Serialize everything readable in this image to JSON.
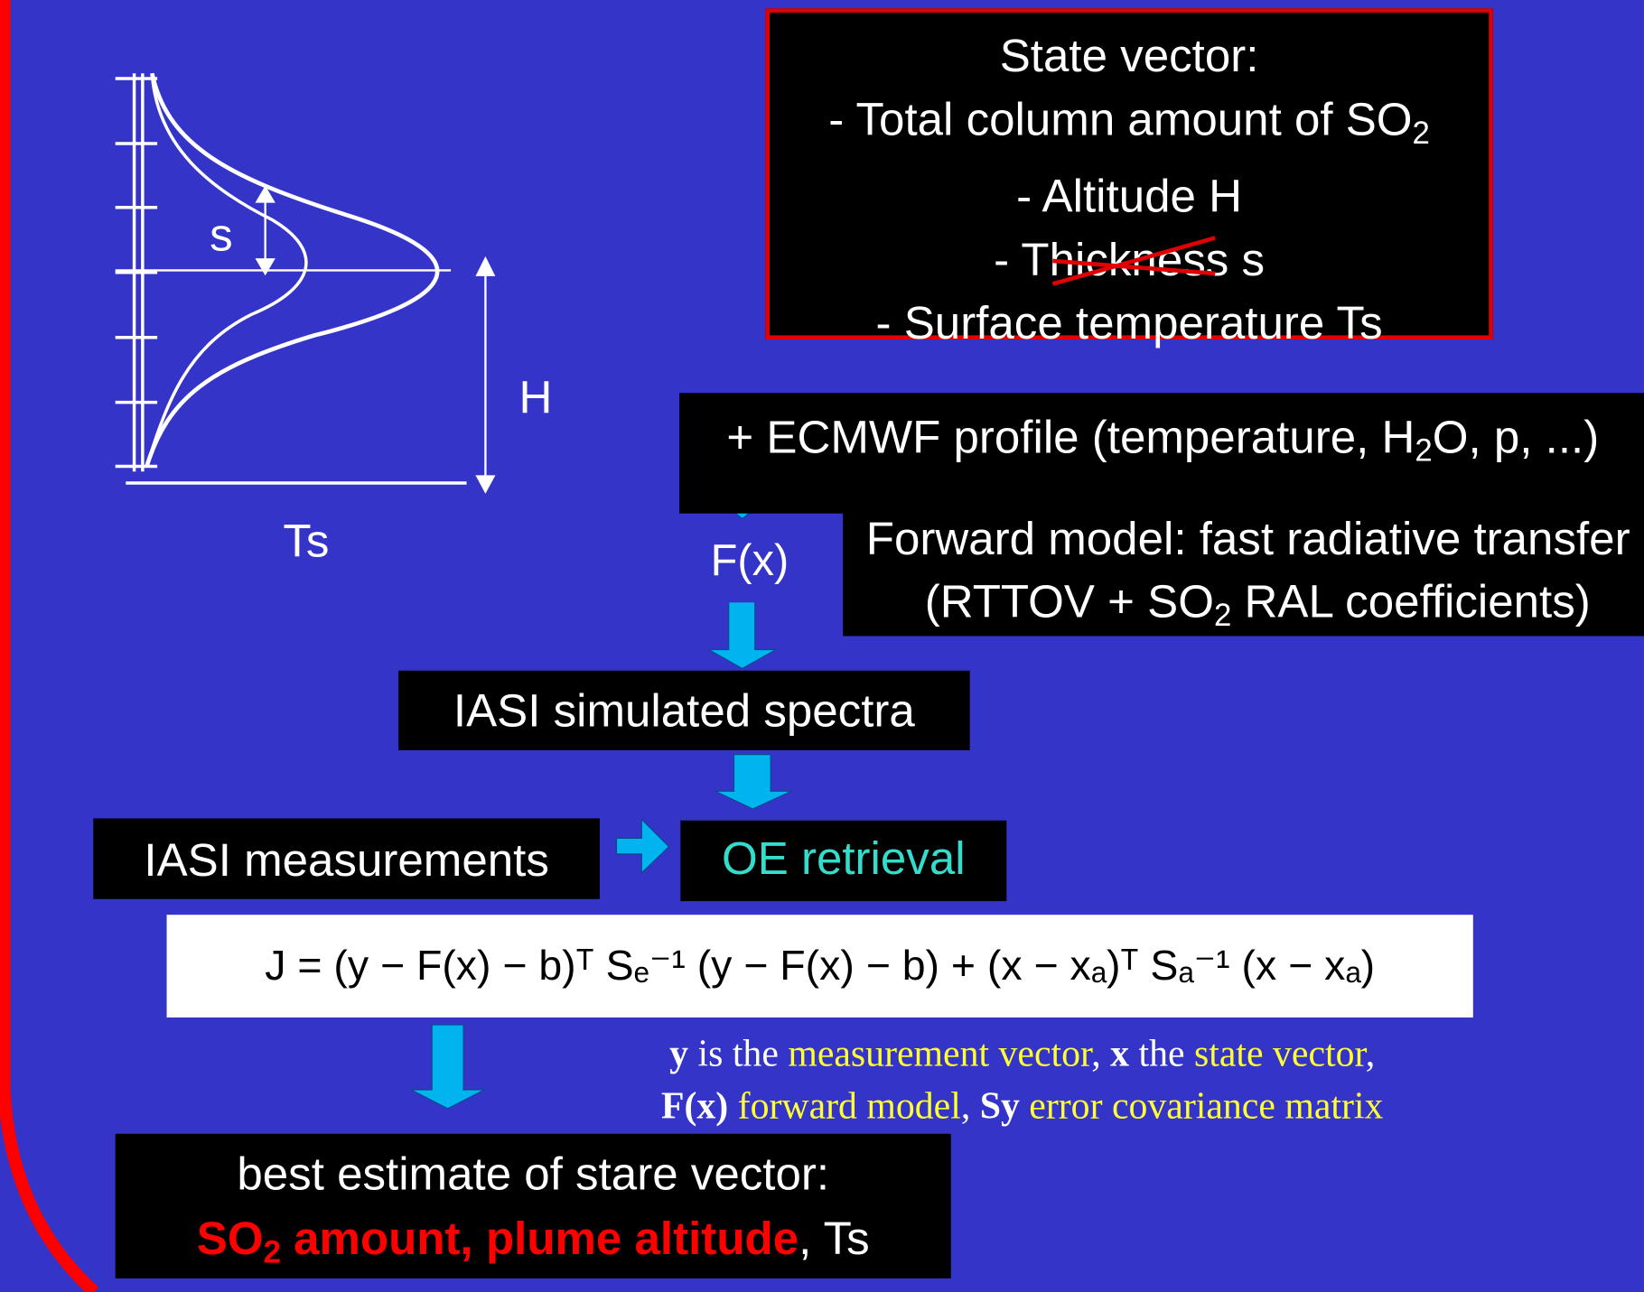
{
  "profile": {
    "s": "s",
    "H": "H",
    "Ts": "Ts"
  },
  "state_vector": {
    "title": "State vector:",
    "line1": "- Total column amount of SO",
    "line1_sub": "2",
    "line2": "- Altitude H",
    "line3": "- Thickness s",
    "line4": "- Surface temperature Ts"
  },
  "ecmwf": {
    "text": "+ ECMWF profile (temperature, H",
    "sub": "2",
    "text2": "O, p, ...)"
  },
  "forward_model": {
    "fx": "F(x)",
    "line1": "Forward model: fast radiative transfer",
    "line2": "(RTTOV + SO",
    "line2_sub": "2",
    "line2_end": " RAL coefficients)"
  },
  "simulated": "IASI simulated spectra",
  "measurements": "IASI measurements",
  "retrieval": "OE retrieval",
  "equation": "J = (y − F(x) − b)ᵀ Sₑ⁻¹ (y − F(x) − b) + (x − xₐ)ᵀ Sₐ⁻¹ (x − xₐ)",
  "legend": [
    "y",
    " is the ",
    "measurement vector",
    ", ",
    "x",
    " the ",
    "state vector",
    ",",
    "F(x)",
    " ",
    "forward model",
    ", ",
    "Sy",
    " ",
    "error covariance matrix"
  ],
  "result": {
    "title": "best estimate of stare vector:",
    "so": "SO",
    "so_sub": "2",
    "rest": " amount, plume altitude",
    "end": ", Ts"
  }
}
